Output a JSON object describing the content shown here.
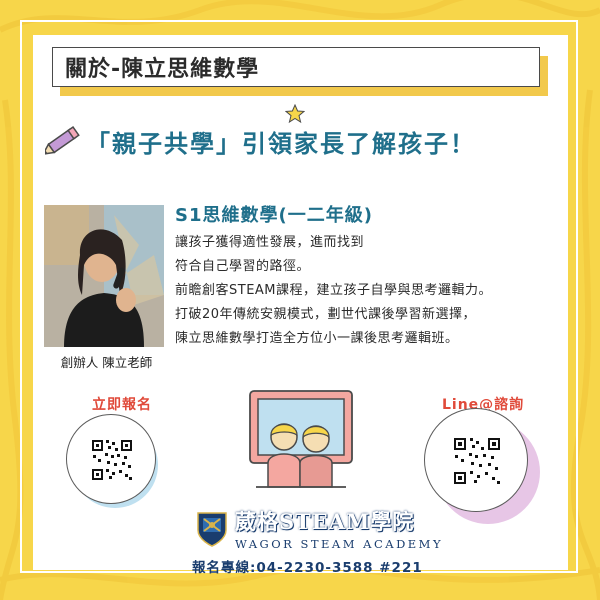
{
  "header": {
    "title": "關於-陳立思維數學"
  },
  "headline": "「親子共學」引領家長了解孩子！",
  "founder": {
    "caption": "創辦人  陳立老師"
  },
  "course": {
    "title": "S1思維數學(一二年級)",
    "lines": [
      "讓孩子獲得適性發展，進而找到",
      "符合自己學習的路徑。",
      "前瞻創客STEAM課程，建立孩子自學與思考邏輯力。",
      "打破20年傳統安親模式，劃世代課後學習新選擇，",
      "陳立思維數學打造全方位小一課後思考邏輯班。"
    ]
  },
  "cta_left": {
    "label": "立即報名"
  },
  "cta_right": {
    "label": "Line@諮詢"
  },
  "footer": {
    "academy_name": "葳格STEAM學院",
    "academy_en": "WAGOR STEAM ACADEMY",
    "hotline": "報名專線:04-2230-3588 #221"
  },
  "colors": {
    "background": "#f7d64a",
    "headline": "#1f6f8b",
    "cta": "#e04a3a",
    "navy": "#1a3d6e"
  }
}
